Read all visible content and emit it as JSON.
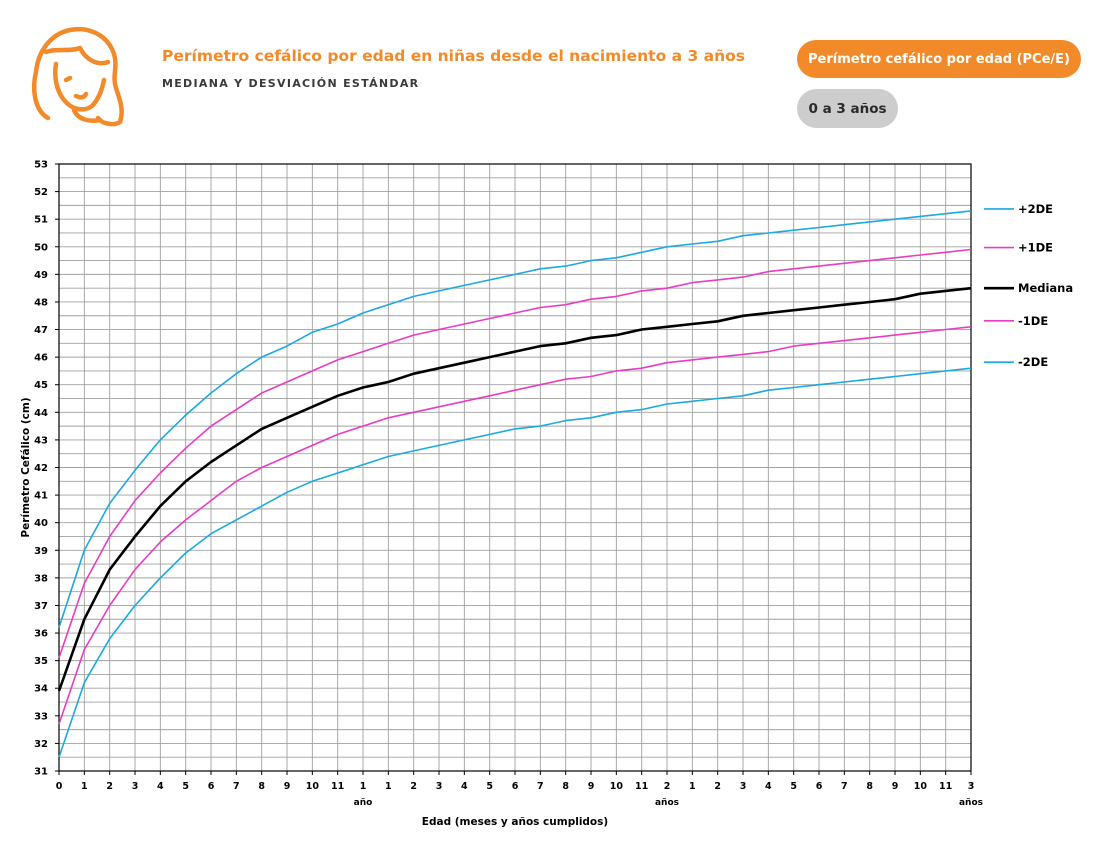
{
  "header": {
    "title": "Perímetro cefálico por edad en niñas desde el nacimiento a 3 años",
    "subtitle": "MEDIANA Y DESVIACIÓN ESTÁNDAR"
  },
  "buttons": {
    "indicator_label": "Perímetro cefálico por edad (PCe/E)",
    "range_label": "0 a 3 años"
  },
  "colors": {
    "accent": "#f28a2a",
    "sd2": "#1aa9e0",
    "sd1": "#e93cc4",
    "median": "#000000",
    "grid": "#a0a0a0"
  },
  "icons": {
    "logo": "girl-face-icon"
  },
  "chart_data": {
    "type": "line",
    "xlabel": "Edad (meses y años cumplidos)",
    "ylabel": "Perímetro Cefálico (cm)",
    "xlim": [
      0,
      36
    ],
    "ylim": [
      31,
      53
    ],
    "y_ticks": [
      "31",
      "32",
      "33",
      "34",
      "35",
      "36",
      "37",
      "38",
      "39",
      "40",
      "41",
      "42",
      "43",
      "44",
      "45",
      "46",
      "47",
      "48",
      "49",
      "50",
      "51",
      "52",
      "53"
    ],
    "x_ticks": [
      {
        "x": 0,
        "label": "0"
      },
      {
        "x": 1,
        "label": "1"
      },
      {
        "x": 2,
        "label": "2"
      },
      {
        "x": 3,
        "label": "3"
      },
      {
        "x": 4,
        "label": "4"
      },
      {
        "x": 5,
        "label": "5"
      },
      {
        "x": 6,
        "label": "6"
      },
      {
        "x": 7,
        "label": "7"
      },
      {
        "x": 8,
        "label": "8"
      },
      {
        "x": 9,
        "label": "9"
      },
      {
        "x": 10,
        "label": "10"
      },
      {
        "x": 11,
        "label": "11"
      },
      {
        "x": 12,
        "label": "1",
        "sub": "año"
      },
      {
        "x": 13,
        "label": "1"
      },
      {
        "x": 14,
        "label": "2"
      },
      {
        "x": 15,
        "label": "3"
      },
      {
        "x": 16,
        "label": "4"
      },
      {
        "x": 17,
        "label": "5"
      },
      {
        "x": 18,
        "label": "6"
      },
      {
        "x": 19,
        "label": "7"
      },
      {
        "x": 20,
        "label": "8"
      },
      {
        "x": 21,
        "label": "9"
      },
      {
        "x": 22,
        "label": "10"
      },
      {
        "x": 23,
        "label": "11"
      },
      {
        "x": 24,
        "label": "2",
        "sub": "años"
      },
      {
        "x": 25,
        "label": "1"
      },
      {
        "x": 26,
        "label": "2"
      },
      {
        "x": 27,
        "label": "3"
      },
      {
        "x": 28,
        "label": "4"
      },
      {
        "x": 29,
        "label": "5"
      },
      {
        "x": 30,
        "label": "6"
      },
      {
        "x": 31,
        "label": "7"
      },
      {
        "x": 32,
        "label": "8"
      },
      {
        "x": 33,
        "label": "9"
      },
      {
        "x": 34,
        "label": "10"
      },
      {
        "x": 35,
        "label": "11"
      },
      {
        "x": 36,
        "label": "3",
        "sub": "años"
      }
    ],
    "x": [
      0,
      1,
      2,
      3,
      4,
      5,
      6,
      7,
      8,
      9,
      10,
      11,
      12,
      13,
      14,
      15,
      16,
      17,
      18,
      19,
      20,
      21,
      22,
      23,
      24,
      25,
      26,
      27,
      28,
      29,
      30,
      31,
      32,
      33,
      34,
      35,
      36
    ],
    "series": [
      {
        "name": "+2DE",
        "color": "#1aa9e0",
        "values": [
          36.2,
          39.0,
          40.7,
          41.9,
          43.0,
          43.9,
          44.7,
          45.4,
          46.0,
          46.4,
          46.9,
          47.2,
          47.6,
          47.9,
          48.2,
          48.4,
          48.6,
          48.8,
          49.0,
          49.2,
          49.3,
          49.5,
          49.6,
          49.8,
          50.0,
          50.1,
          50.2,
          50.4,
          50.5,
          50.6,
          50.7,
          50.8,
          50.9,
          51.0,
          51.1,
          51.2,
          51.3
        ]
      },
      {
        "name": "+1DE",
        "color": "#e93cc4",
        "values": [
          35.1,
          37.8,
          39.5,
          40.8,
          41.8,
          42.7,
          43.5,
          44.1,
          44.7,
          45.1,
          45.5,
          45.9,
          46.2,
          46.5,
          46.8,
          47.0,
          47.2,
          47.4,
          47.6,
          47.8,
          47.9,
          48.1,
          48.2,
          48.4,
          48.5,
          48.7,
          48.8,
          48.9,
          49.1,
          49.2,
          49.3,
          49.4,
          49.5,
          49.6,
          49.7,
          49.8,
          49.9
        ]
      },
      {
        "name": "Mediana",
        "color": "#000000",
        "values": [
          33.9,
          36.5,
          38.3,
          39.5,
          40.6,
          41.5,
          42.2,
          42.8,
          43.4,
          43.8,
          44.2,
          44.6,
          44.9,
          45.1,
          45.4,
          45.6,
          45.8,
          46.0,
          46.2,
          46.4,
          46.5,
          46.7,
          46.8,
          47.0,
          47.1,
          47.2,
          47.3,
          47.5,
          47.6,
          47.7,
          47.8,
          47.9,
          48.0,
          48.1,
          48.3,
          48.4,
          48.5
        ]
      },
      {
        "name": "-1DE",
        "color": "#e93cc4",
        "values": [
          32.7,
          35.4,
          37.0,
          38.3,
          39.3,
          40.1,
          40.8,
          41.5,
          42.0,
          42.4,
          42.8,
          43.2,
          43.5,
          43.8,
          44.0,
          44.2,
          44.4,
          44.6,
          44.8,
          45.0,
          45.2,
          45.3,
          45.5,
          45.6,
          45.8,
          45.9,
          46.0,
          46.1,
          46.2,
          46.4,
          46.5,
          46.6,
          46.7,
          46.8,
          46.9,
          47.0,
          47.1
        ]
      },
      {
        "name": "-2DE",
        "color": "#1aa9e0",
        "values": [
          31.5,
          34.2,
          35.8,
          37.0,
          38.0,
          38.9,
          39.6,
          40.1,
          40.6,
          41.1,
          41.5,
          41.8,
          42.1,
          42.4,
          42.6,
          42.8,
          43.0,
          43.2,
          43.4,
          43.5,
          43.7,
          43.8,
          44.0,
          44.1,
          44.3,
          44.4,
          44.5,
          44.6,
          44.8,
          44.9,
          45.0,
          45.1,
          45.2,
          45.3,
          45.4,
          45.5,
          45.6
        ]
      }
    ],
    "grid": true,
    "legend_position": "right"
  }
}
